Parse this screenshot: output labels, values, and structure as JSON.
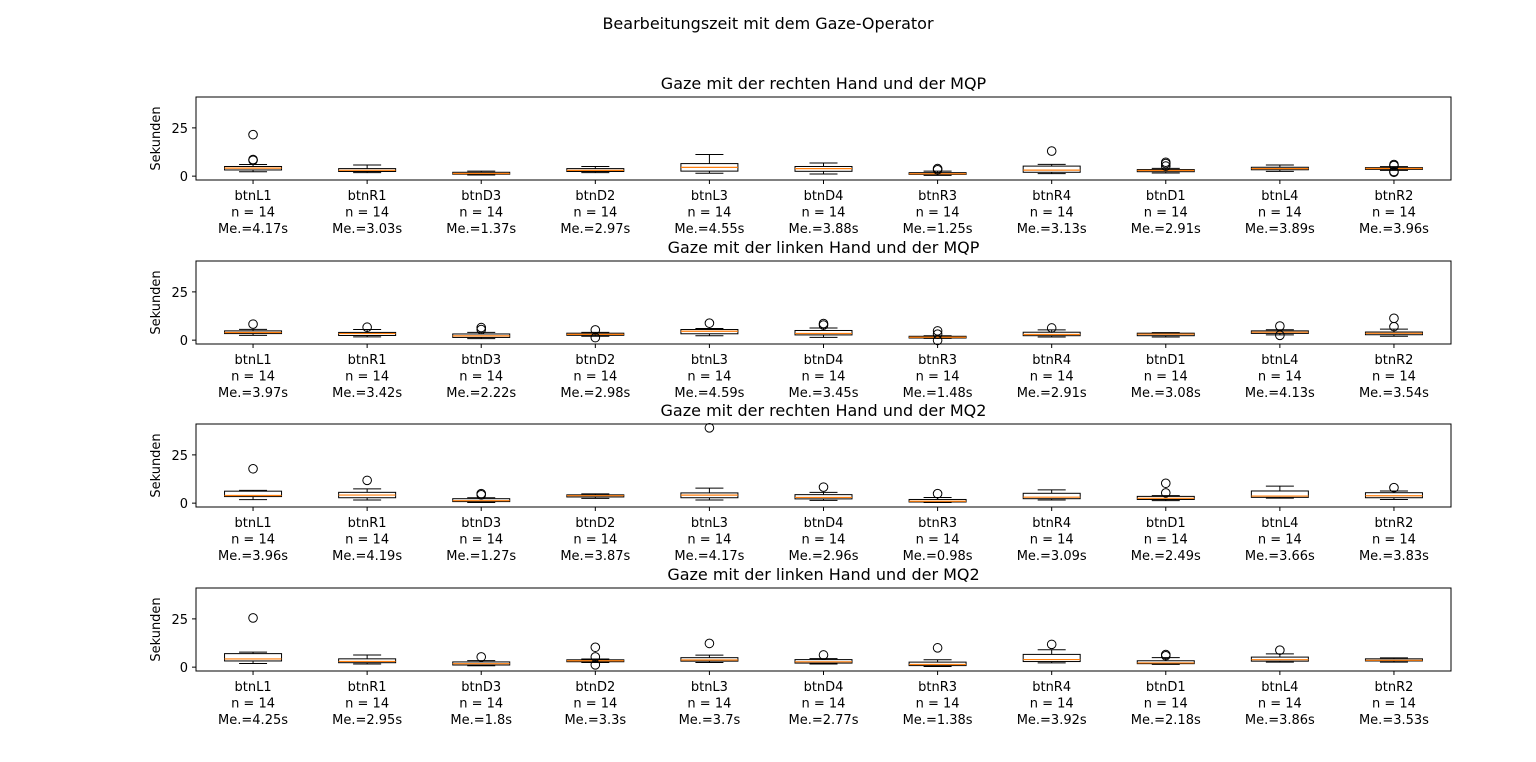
{
  "suptitle": "Bearbeitungszeit mit dem Gaze-Operator",
  "colors": {
    "median": "#ff7f0e",
    "box": "#000000",
    "background": "#ffffff"
  },
  "chart_data": [
    {
      "type": "box",
      "title": "Gaze mit der rechten Hand und der MQP",
      "ylabel": "Sekunden",
      "ylim": [
        -2,
        41
      ],
      "yticks": [
        0,
        25
      ],
      "categories": [
        "btnL1",
        "btnR1",
        "btnD3",
        "btnD2",
        "btnL3",
        "btnD4",
        "btnR3",
        "btnR4",
        "btnD1",
        "btnL4",
        "btnR2"
      ],
      "n_labels": [
        "n = 14",
        "n = 14",
        "n = 14",
        "n = 14",
        "n = 14",
        "n = 14",
        "n = 14",
        "n = 14",
        "n = 14",
        "n = 14",
        "n = 14"
      ],
      "median_labels": [
        "Me.=4.17s",
        "Me.=3.03s",
        "Me.=1.37s",
        "Me.=2.97s",
        "Me.=4.55s",
        "Me.=3.88s",
        "Me.=1.25s",
        "Me.=3.13s",
        "Me.=2.91s",
        "Me.=3.89s",
        "Me.=3.96s"
      ],
      "boxes": [
        {
          "whislo": 2.3,
          "q1": 3.2,
          "med": 4.17,
          "q3": 5.0,
          "whishi": 6.0,
          "fliers": [
            8.2,
            8.6,
            21.5
          ]
        },
        {
          "whislo": 1.8,
          "q1": 2.4,
          "med": 3.03,
          "q3": 3.9,
          "whishi": 5.8,
          "fliers": []
        },
        {
          "whislo": 0.6,
          "q1": 1.0,
          "med": 1.37,
          "q3": 2.0,
          "whishi": 2.6,
          "fliers": []
        },
        {
          "whislo": 1.8,
          "q1": 2.4,
          "med": 2.97,
          "q3": 3.9,
          "whishi": 5.0,
          "fliers": []
        },
        {
          "whislo": 1.5,
          "q1": 2.6,
          "med": 4.55,
          "q3": 6.5,
          "whishi": 11.2,
          "fliers": []
        },
        {
          "whislo": 1.1,
          "q1": 2.5,
          "med": 3.88,
          "q3": 5.0,
          "whishi": 6.8,
          "fliers": []
        },
        {
          "whislo": 0.4,
          "q1": 0.9,
          "med": 1.25,
          "q3": 1.8,
          "whishi": 2.6,
          "fliers": [
            3.3,
            3.9
          ]
        },
        {
          "whislo": 1.3,
          "q1": 2.0,
          "med": 3.13,
          "q3": 5.2,
          "whishi": 6.1,
          "fliers": [
            13.0
          ]
        },
        {
          "whislo": 1.6,
          "q1": 2.3,
          "med": 2.91,
          "q3": 3.4,
          "whishi": 4.0,
          "fliers": [
            5.2,
            6.5,
            7.2
          ]
        },
        {
          "whislo": 2.5,
          "q1": 3.3,
          "med": 3.89,
          "q3": 4.6,
          "whishi": 5.8,
          "fliers": []
        },
        {
          "whislo": 3.0,
          "q1": 3.5,
          "med": 3.96,
          "q3": 4.4,
          "whishi": 4.9,
          "fliers": [
            2.0,
            2.4,
            5.5,
            6.0
          ]
        }
      ]
    },
    {
      "type": "box",
      "title": "Gaze mit der linken Hand und der MQP",
      "ylabel": "Sekunden",
      "ylim": [
        -2,
        41
      ],
      "yticks": [
        0,
        25
      ],
      "categories": [
        "btnL1",
        "btnR1",
        "btnD3",
        "btnD2",
        "btnL3",
        "btnD4",
        "btnR3",
        "btnR4",
        "btnD1",
        "btnL4",
        "btnR2"
      ],
      "n_labels": [
        "n = 14",
        "n = 14",
        "n = 14",
        "n = 14",
        "n = 14",
        "n = 14",
        "n = 14",
        "n = 14",
        "n = 14",
        "n = 14",
        "n = 14"
      ],
      "median_labels": [
        "Me.=3.97s",
        "Me.=3.42s",
        "Me.=2.22s",
        "Me.=2.98s",
        "Me.=4.59s",
        "Me.=3.45s",
        "Me.=1.48s",
        "Me.=2.91s",
        "Me.=3.08s",
        "Me.=4.13s",
        "Me.=3.54s"
      ],
      "boxes": [
        {
          "whislo": 2.5,
          "q1": 3.4,
          "med": 3.97,
          "q3": 4.8,
          "whishi": 5.6,
          "fliers": [
            8.3
          ]
        },
        {
          "whislo": 1.7,
          "q1": 2.4,
          "med": 3.42,
          "q3": 4.0,
          "whishi": 5.5,
          "fliers": [
            6.7
          ]
        },
        {
          "whislo": 0.8,
          "q1": 1.4,
          "med": 2.22,
          "q3": 3.2,
          "whishi": 4.0,
          "fliers": [
            5.5,
            6.5
          ]
        },
        {
          "whislo": 2.0,
          "q1": 2.5,
          "med": 2.98,
          "q3": 3.6,
          "whishi": 4.0,
          "fliers": [
            1.3,
            5.3
          ]
        },
        {
          "whislo": 2.3,
          "q1": 3.3,
          "med": 4.59,
          "q3": 5.5,
          "whishi": 6.0,
          "fliers": [
            8.8
          ]
        },
        {
          "whislo": 1.4,
          "q1": 2.7,
          "med": 3.45,
          "q3": 5.0,
          "whishi": 6.3,
          "fliers": [
            7.8,
            8.6
          ]
        },
        {
          "whislo": 0.9,
          "q1": 1.1,
          "med": 1.48,
          "q3": 2.0,
          "whishi": 2.3,
          "fliers": [
            -0.1,
            3.1,
            4.8
          ]
        },
        {
          "whislo": 1.6,
          "q1": 2.3,
          "med": 2.91,
          "q3": 4.1,
          "whishi": 5.3,
          "fliers": [
            6.3
          ]
        },
        {
          "whislo": 1.6,
          "q1": 2.3,
          "med": 3.08,
          "q3": 3.6,
          "whishi": 3.9,
          "fliers": []
        },
        {
          "whislo": 2.7,
          "q1": 3.5,
          "med": 4.13,
          "q3": 4.8,
          "whishi": 5.4,
          "fliers": [
            2.5,
            7.3
          ]
        },
        {
          "whislo": 2.0,
          "q1": 2.8,
          "med": 3.54,
          "q3": 4.2,
          "whishi": 5.7,
          "fliers": [
            7.0,
            11.3
          ]
        }
      ]
    },
    {
      "type": "box",
      "title": "Gaze mit der rechten Hand und der MQ2",
      "ylabel": "Sekunden",
      "ylim": [
        -2,
        41
      ],
      "yticks": [
        0,
        25
      ],
      "categories": [
        "btnL1",
        "btnR1",
        "btnD3",
        "btnD2",
        "btnL3",
        "btnD4",
        "btnR3",
        "btnR4",
        "btnD1",
        "btnL4",
        "btnR2"
      ],
      "n_labels": [
        "n = 14",
        "n = 14",
        "n = 14",
        "n = 14",
        "n = 14",
        "n = 14",
        "n = 14",
        "n = 14",
        "n = 14",
        "n = 14",
        "n = 14"
      ],
      "median_labels": [
        "Me.=3.96s",
        "Me.=4.19s",
        "Me.=1.27s",
        "Me.=3.87s",
        "Me.=4.17s",
        "Me.=2.96s",
        "Me.=0.98s",
        "Me.=3.09s",
        "Me.=2.49s",
        "Me.=3.66s",
        "Me.=3.83s"
      ],
      "boxes": [
        {
          "whislo": 1.8,
          "q1": 3.4,
          "med": 3.96,
          "q3": 6.2,
          "whishi": 6.6,
          "fliers": [
            17.8
          ]
        },
        {
          "whislo": 1.6,
          "q1": 2.8,
          "med": 4.19,
          "q3": 5.6,
          "whishi": 7.4,
          "fliers": [
            11.8
          ]
        },
        {
          "whislo": 0.3,
          "q1": 0.8,
          "med": 1.27,
          "q3": 2.3,
          "whishi": 2.8,
          "fliers": [
            4.3,
            4.9
          ]
        },
        {
          "whislo": 2.5,
          "q1": 3.2,
          "med": 3.87,
          "q3": 4.3,
          "whishi": 4.8,
          "fliers": []
        },
        {
          "whislo": 1.6,
          "q1": 2.8,
          "med": 4.17,
          "q3": 5.3,
          "whishi": 7.8,
          "fliers": [
            39.0
          ]
        },
        {
          "whislo": 1.4,
          "q1": 2.2,
          "med": 2.96,
          "q3": 4.4,
          "whishi": 5.6,
          "fliers": [
            8.3
          ]
        },
        {
          "whislo": 0.3,
          "q1": 0.6,
          "med": 0.98,
          "q3": 1.9,
          "whishi": 2.9,
          "fliers": [
            4.9
          ]
        },
        {
          "whislo": 1.6,
          "q1": 2.3,
          "med": 3.09,
          "q3": 5.1,
          "whishi": 6.9,
          "fliers": []
        },
        {
          "whislo": 1.3,
          "q1": 1.9,
          "med": 2.49,
          "q3": 3.5,
          "whishi": 3.9,
          "fliers": [
            5.3,
            10.3
          ]
        },
        {
          "whislo": 2.6,
          "q1": 3.0,
          "med": 3.66,
          "q3": 6.3,
          "whishi": 8.8,
          "fliers": []
        },
        {
          "whislo": 1.9,
          "q1": 2.8,
          "med": 3.83,
          "q3": 5.4,
          "whishi": 6.3,
          "fliers": [
            8.0
          ]
        }
      ]
    },
    {
      "type": "box",
      "title": "Gaze mit der linken Hand und der MQ2",
      "ylabel": "Sekunden",
      "ylim": [
        -2,
        41
      ],
      "yticks": [
        0,
        25
      ],
      "categories": [
        "btnL1",
        "btnR1",
        "btnD3",
        "btnD2",
        "btnL3",
        "btnD4",
        "btnR3",
        "btnR4",
        "btnD1",
        "btnL4",
        "btnR2"
      ],
      "n_labels": [
        "n = 14",
        "n = 14",
        "n = 14",
        "n = 14",
        "n = 14",
        "n = 14",
        "n = 14",
        "n = 14",
        "n = 14",
        "n = 14",
        "n = 14"
      ],
      "median_labels": [
        "Me.=4.25s",
        "Me.=2.95s",
        "Me.=1.8s",
        "Me.=3.3s",
        "Me.=3.7s",
        "Me.=2.77s",
        "Me.=1.38s",
        "Me.=3.92s",
        "Me.=2.18s",
        "Me.=3.86s",
        "Me.=3.53s"
      ],
      "boxes": [
        {
          "whislo": 1.9,
          "q1": 3.2,
          "med": 4.25,
          "q3": 7.0,
          "whishi": 7.8,
          "fliers": [
            25.5
          ]
        },
        {
          "whislo": 1.6,
          "q1": 2.3,
          "med": 2.95,
          "q3": 4.3,
          "whishi": 6.3,
          "fliers": []
        },
        {
          "whislo": 0.7,
          "q1": 1.1,
          "med": 1.8,
          "q3": 2.7,
          "whishi": 3.4,
          "fliers": [
            5.3
          ]
        },
        {
          "whislo": 2.4,
          "q1": 2.8,
          "med": 3.3,
          "q3": 3.8,
          "whishi": 4.2,
          "fliers": [
            1.2,
            5.3,
            10.3
          ]
        },
        {
          "whislo": 2.4,
          "q1": 3.1,
          "med": 3.7,
          "q3": 4.9,
          "whishi": 6.2,
          "fliers": [
            12.3
          ]
        },
        {
          "whislo": 1.6,
          "q1": 2.1,
          "med": 2.77,
          "q3": 3.9,
          "whishi": 4.4,
          "fliers": [
            6.3
          ]
        },
        {
          "whislo": 0.3,
          "q1": 0.8,
          "med": 1.38,
          "q3": 2.6,
          "whishi": 3.8,
          "fliers": [
            10.0
          ]
        },
        {
          "whislo": 2.2,
          "q1": 2.9,
          "med": 3.92,
          "q3": 6.6,
          "whishi": 9.0,
          "fliers": [
            11.8
          ]
        },
        {
          "whislo": 1.4,
          "q1": 1.8,
          "med": 2.18,
          "q3": 3.3,
          "whishi": 4.9,
          "fliers": [
            5.9,
            6.5
          ]
        },
        {
          "whislo": 2.6,
          "q1": 3.1,
          "med": 3.86,
          "q3": 5.2,
          "whishi": 6.9,
          "fliers": [
            8.8
          ]
        },
        {
          "whislo": 2.6,
          "q1": 3.2,
          "med": 3.53,
          "q3": 4.3,
          "whishi": 4.8,
          "fliers": []
        }
      ]
    }
  ]
}
